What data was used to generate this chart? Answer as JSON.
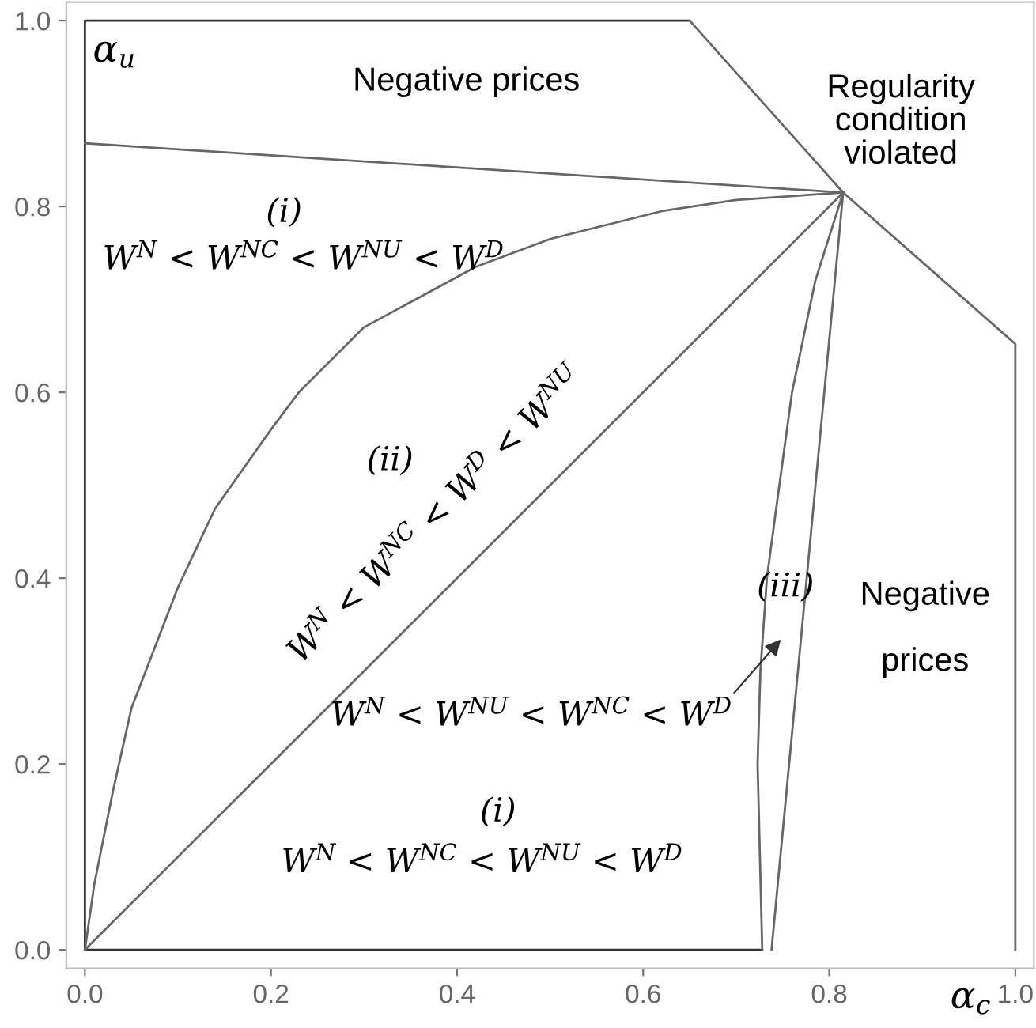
{
  "chart_data": {
    "type": "line",
    "xlabel": "α$_{c}$",
    "ylabel": "α$_{u}$",
    "xlim": [
      -0.02,
      1.02
    ],
    "ylim": [
      -0.02,
      1.02
    ],
    "xticks": [
      {
        "value": 0,
        "label": "0.0"
      },
      0.2,
      0.4,
      0.6,
      0.8,
      {
        "value": 1,
        "label": "1.0"
      }
    ],
    "yticks": [
      {
        "value": 0,
        "label": "0.0"
      },
      0.2,
      0.4,
      0.6,
      0.8,
      {
        "value": 1,
        "label": "1.0"
      }
    ],
    "grid": false,
    "legend": false,
    "marker": "none",
    "line_style": "solid",
    "series": [
      {
        "color": "#333333",
        "x": [
          0.65,
          0,
          0,
          0.728
        ],
        "values": [
          1,
          1,
          0,
          0
        ]
      },
      {
        "color": "#666666",
        "x": [
          0.65,
          0.815,
          1.0,
          1.0
        ],
        "values": [
          1,
          0.815,
          0.652,
          0
        ]
      },
      {
        "color": "#666666",
        "x": [
          0,
          0.815
        ],
        "values": [
          0.868,
          0.815
        ]
      },
      {
        "color": "#666666",
        "x": [
          0,
          0.01,
          0.03,
          0.05,
          0.1,
          0.14,
          0.2,
          0.23,
          0.3,
          0.42,
          0.5,
          0.62,
          0.7,
          0.815
        ],
        "values": [
          0,
          0.07,
          0.17,
          0.26,
          0.39,
          0.475,
          0.56,
          0.6,
          0.67,
          0.735,
          0.765,
          0.795,
          0.807,
          0.815
        ]
      },
      {
        "color": "#666666",
        "x": [
          0,
          0.815
        ],
        "values": [
          0,
          0.815
        ]
      },
      {
        "color": "#666666",
        "x": [
          0.728,
          0.723,
          0.726,
          0.733,
          0.743,
          0.76,
          0.785,
          0.815
        ],
        "values": [
          0,
          0.2,
          0.3,
          0.4,
          0.475,
          0.6,
          0.72,
          0.815
        ]
      },
      {
        "color": "#666666",
        "x": [
          0.738,
          0.815
        ],
        "values": [
          0,
          0.815
        ]
      }
    ],
    "annotations": [
      "Negative prices",
      "Regularity\ncondition\nviolated",
      "(i)",
      "W$^{N}$ < W$^{NC}$ < W$^{NU}$ < W$^{D}$",
      "(ii)",
      "W$^{N}$ < W$^{NC}$ < W$^{D}$ < W$^{NU}$",
      "(iii)",
      "Negative\n\nprices",
      "W$^{N}$ < W$^{NU}$ < W$^{NC}$ < W$^{D}$",
      "(i)",
      "W$^{N}$ < W$^{NC}$ < W$^{NU}$ < W$^{D}$"
    ]
  }
}
